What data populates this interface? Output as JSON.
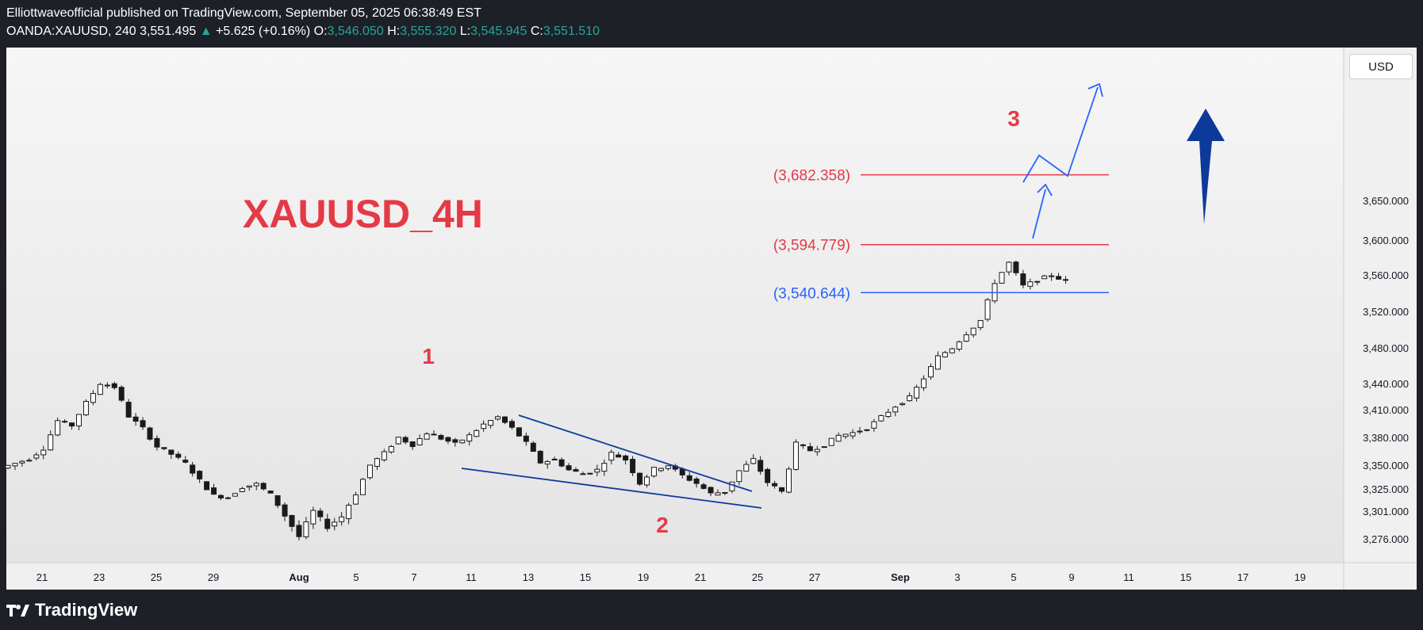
{
  "header": {
    "publisher": "Elliottwaveofficial",
    "published_text": " published on TradingView.com, September 05, 2025 06:38:49 EST",
    "symbol": "OANDA:XAUUSD, 240",
    "last": "3,551.495",
    "change": "+5.625 (+0.16%)",
    "open_label": "O:",
    "open": "3,546.050",
    "high_label": "H:",
    "high": "3,555.320",
    "low_label": "L:",
    "low": "3,545.945",
    "close_label": "C:",
    "close": "3,551.510"
  },
  "currency_button": "USD",
  "logo_text": "TradingView",
  "colors": {
    "red": "#e53946",
    "blue": "#2962ff",
    "navy": "#0d3a9a",
    "up": "#26a69a",
    "panel": "#f0f0f0"
  },
  "chart_data": {
    "type": "candlestick",
    "title": "XAUUSD_4H",
    "x_ticks": [
      "21",
      "23",
      "25",
      "29",
      "Aug",
      "5",
      "7",
      "11",
      "13",
      "15",
      "19",
      "21",
      "25",
      "27",
      "Sep",
      "3",
      "5",
      "9",
      "11",
      "15",
      "17",
      "19"
    ],
    "y_ticks": [
      3276,
      3301,
      3325,
      3350,
      3380,
      3410,
      3440,
      3480,
      3520,
      3560,
      3600,
      3650
    ],
    "y_tick_labels": [
      "3,276.000",
      "3,301.000",
      "3,325.000",
      "3,350.000",
      "3,380.000",
      "3,410.000",
      "3,440.000",
      "3,480.000",
      "3,520.000",
      "3,560.000",
      "3,600.000",
      "3,650.000"
    ],
    "levels": [
      {
        "label": "(3,682.358)",
        "value": 3682.358,
        "color": "#e53946"
      },
      {
        "label": "(3,594.779)",
        "value": 3594.779,
        "color": "#e53946"
      },
      {
        "label": "(3,540.644)",
        "value": 3540.644,
        "color": "#2962ff"
      }
    ],
    "wave_labels": [
      "1",
      "2",
      "3"
    ],
    "price_path_days": [
      0,
      1,
      2,
      3,
      4,
      5,
      6,
      7,
      8,
      9,
      10,
      11,
      12,
      13,
      14,
      15,
      16,
      17,
      18,
      19,
      20,
      21,
      22,
      23,
      24,
      25,
      26,
      27,
      28,
      29,
      30,
      31,
      32,
      33,
      34,
      35,
      36,
      37,
      38,
      39,
      40,
      41,
      42,
      43,
      44,
      45,
      46,
      47,
      48,
      49,
      50,
      51,
      52,
      53,
      54,
      55,
      56,
      57,
      58,
      59,
      60,
      61,
      62,
      63,
      64,
      65,
      66,
      67,
      68,
      69,
      70,
      71,
      72,
      73,
      74,
      75
    ],
    "price_path": [
      3347,
      3352,
      3357,
      3368,
      3398,
      3393,
      3418,
      3440,
      3436,
      3403,
      3390,
      3370,
      3362,
      3352,
      3334,
      3318,
      3316,
      3327,
      3330,
      3319,
      3297,
      3278,
      3301,
      3287,
      3296,
      3320,
      3350,
      3363,
      3380,
      3372,
      3385,
      3379,
      3373,
      3382,
      3394,
      3402,
      3390,
      3374,
      3353,
      3356,
      3345,
      3341,
      3345,
      3363,
      3356,
      3331,
      3346,
      3350,
      3339,
      3331,
      3320,
      3322,
      3344,
      3356,
      3332,
      3322,
      3373,
      3366,
      3372,
      3382,
      3385,
      3390,
      3402,
      3414,
      3424,
      3446,
      3470,
      3480,
      3496,
      3510,
      3552,
      3574,
      3548,
      3554,
      3560,
      3553
    ],
    "pattern_notes": "falling wedge"
  }
}
